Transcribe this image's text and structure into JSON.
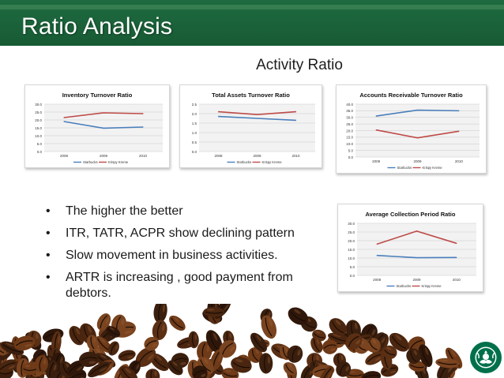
{
  "slide": {
    "title": "Ratio Analysis",
    "subtitle": "Activity Ratio",
    "bullets": [
      "The higher the better",
      "ITR, TATR, ACPR show declining pattern",
      "Slow movement in business activities.",
      "ARTR is increasing , good payment from debtors."
    ]
  },
  "colors": {
    "header_green": "#1f6b40",
    "starbucks_series": "#4a7ebb",
    "krispy_series": "#be4b48",
    "plot_bg": "#f2f2f2",
    "logo_green": "#00704a"
  },
  "icons": {
    "bullet": "•",
    "logo": "starbucks-siren-logo",
    "beans": "coffee-beans-image"
  },
  "chart_data": [
    {
      "type": "line",
      "title": "Inventory Turnover Ratio",
      "categories": [
        "2008",
        "2009",
        "2010"
      ],
      "series": [
        {
          "name": "Starbucks",
          "values": [
            19,
            14.8,
            15.5
          ]
        },
        {
          "name": "Krispy Kreme",
          "values": [
            21.5,
            24.5,
            24
          ]
        }
      ],
      "yticks": [
        "0.0",
        "5.0",
        "10.0",
        "15.0",
        "20.0",
        "25.0",
        "30.0"
      ],
      "ylim": [
        0,
        30
      ],
      "legend": "bottom",
      "grid": true
    },
    {
      "type": "line",
      "title": "Total Assets Turnover Ratio",
      "categories": [
        "2008",
        "2009",
        "2010"
      ],
      "series": [
        {
          "name": "Starbucks",
          "values": [
            1.85,
            1.75,
            1.65
          ]
        },
        {
          "name": "Krispy Kreme",
          "values": [
            2.1,
            1.95,
            2.1
          ]
        }
      ],
      "yticks": [
        "0.0",
        "0.5",
        "1.0",
        "1.5",
        "2.0",
        "2.5"
      ],
      "ylim": [
        0,
        2.5
      ],
      "legend": "bottom",
      "grid": true
    },
    {
      "type": "line",
      "title": "Accounts Receivable Turnover Ratio",
      "categories": [
        "2008",
        "2009",
        "2010"
      ],
      "series": [
        {
          "name": "Starbucks",
          "values": [
            31,
            35.5,
            35
          ]
        },
        {
          "name": "Krispy Kreme",
          "values": [
            20.5,
            14.5,
            19.5
          ]
        }
      ],
      "yticks": [
        "0.0",
        "5.0",
        "10.0",
        "15.0",
        "20.0",
        "25.0",
        "30.0",
        "35.0",
        "40.0"
      ],
      "ylim": [
        0,
        40
      ],
      "legend": "bottom",
      "grid": true
    },
    {
      "type": "line",
      "title": "Average Collection Period Ratio",
      "categories": [
        "2008",
        "2009",
        "2010"
      ],
      "series": [
        {
          "name": "Starbucks",
          "values": [
            11.5,
            10.2,
            10.3
          ]
        },
        {
          "name": "Krispy Kreme",
          "values": [
            18,
            25.5,
            18.5
          ]
        }
      ],
      "yticks": [
        "0.0",
        "5.0",
        "10.0",
        "15.0",
        "20.0",
        "25.0",
        "30.0"
      ],
      "ylim": [
        0,
        30
      ],
      "legend": "bottom",
      "grid": true
    }
  ]
}
